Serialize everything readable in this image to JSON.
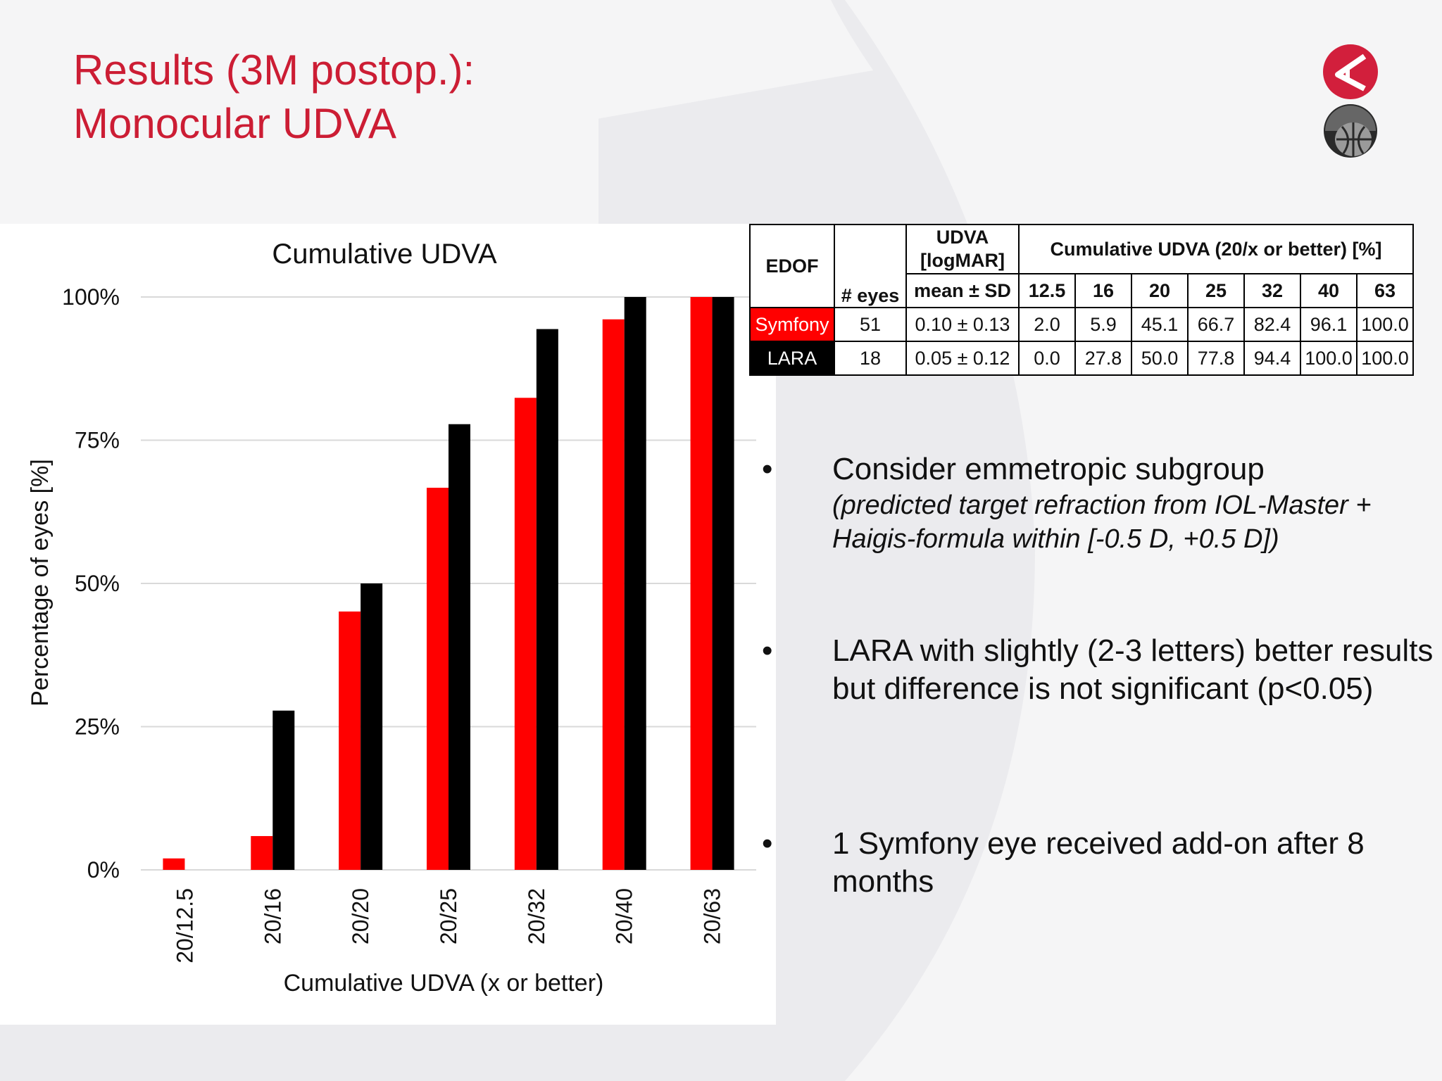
{
  "slide": {
    "title_line1": "Results (3M postop.):",
    "title_line2": "Monocular UDVA",
    "accent_color": "#cc1d34"
  },
  "chart_data": {
    "type": "bar",
    "title": "Cumulative UDVA",
    "xlabel": "Cumulative UDVA (x or better)",
    "ylabel": "Percentage of eyes [%]",
    "categories": [
      "20/12.5",
      "20/16",
      "20/20",
      "20/25",
      "20/32",
      "20/40",
      "20/63"
    ],
    "yticks": [
      "0%",
      "25%",
      "50%",
      "75%",
      "100%"
    ],
    "ylim": [
      0,
      100
    ],
    "grid": true,
    "legend": "none",
    "series": [
      {
        "name": "Symfony",
        "color": "#ff0000",
        "values": [
          2.0,
          5.9,
          45.1,
          66.7,
          82.4,
          96.1,
          100.0
        ]
      },
      {
        "name": "LARA",
        "color": "#000000",
        "values": [
          0.0,
          27.8,
          50.0,
          77.8,
          94.4,
          100.0,
          100.0
        ]
      }
    ]
  },
  "table": {
    "h_edof": "EDOF",
    "h_eyes": "# eyes",
    "h_udva": "UDVA [logMAR]",
    "h_cumulative": "Cumulative UDVA (20/x or better) [%]",
    "h_mean_sd": "mean ± SD",
    "columns": [
      "12.5",
      "16",
      "20",
      "25",
      "32",
      "40",
      "63"
    ],
    "rows": [
      {
        "edof": "Symfony",
        "eyes": "51",
        "udva": "0.10 ± 0.13",
        "values": [
          "2.0",
          "5.9",
          "45.1",
          "66.7",
          "82.4",
          "96.1",
          "100.0"
        ]
      },
      {
        "edof": "LARA",
        "eyes": "18",
        "udva": "0.05 ± 0.12",
        "values": [
          "0.0",
          "27.8",
          "50.0",
          "77.8",
          "94.4",
          "100.0",
          "100.0"
        ]
      }
    ]
  },
  "bullets": {
    "marker": "•",
    "b1_text": "Consider emmetropic subgroup",
    "b1_sub": "(predicted target refraction from IOL-Master + Haigis-formula within [-0.5 D, +0.5 D])",
    "b2_text": "LARA with slightly (2-3 letters) better results but difference is not significant (p<0.05)",
    "b3_text": "1 Symfony eye received add-on after 8 months"
  },
  "icons": {
    "logo_top": "a-logo-icon",
    "logo_bottom": "globe-logo-icon"
  }
}
